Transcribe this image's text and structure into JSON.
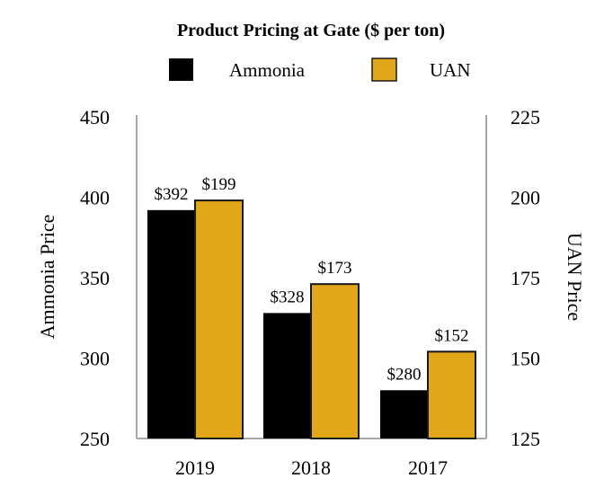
{
  "chart_data": {
    "type": "bar",
    "title": "Product Pricing at Gate ($ per ton)",
    "categories": [
      "2019",
      "2018",
      "2017"
    ],
    "series": [
      {
        "name": "Ammonia",
        "axis": "left",
        "values": [
          392,
          328,
          280
        ],
        "labels": [
          "$392",
          "$328",
          "$280"
        ],
        "color": "#000000"
      },
      {
        "name": "UAN",
        "axis": "right",
        "values": [
          199,
          173,
          152
        ],
        "labels": [
          "$199",
          "$173",
          "$152"
        ],
        "color": "#E1A718"
      }
    ],
    "ylabel": "Ammonia Price",
    "y2label": "UAN Price",
    "ylim": [
      250,
      450
    ],
    "y2lim": [
      125,
      225
    ],
    "yticks": [
      "250",
      "300",
      "350",
      "400",
      "450"
    ],
    "y2ticks": [
      "125",
      "150",
      "175",
      "200",
      "225"
    ],
    "legend": "top",
    "grid": false
  }
}
